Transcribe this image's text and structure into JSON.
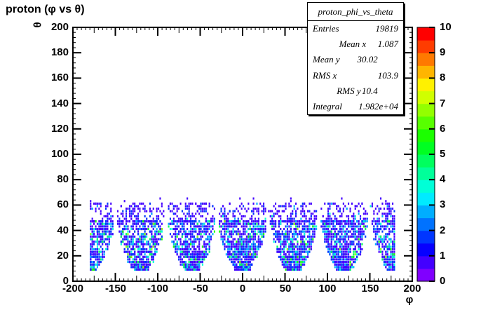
{
  "header": {
    "title": "proton (φ vs θ)"
  },
  "stats": {
    "title": "proton_phi_vs_theta",
    "rows": [
      {
        "label": "Entries",
        "value": "19819"
      },
      {
        "label": "Mean x",
        "value": "1.087"
      },
      {
        "label": "Mean y",
        "value": "30.02"
      },
      {
        "label": "RMS x",
        "value": "103.9"
      },
      {
        "label": "RMS y",
        "value": "10.4"
      },
      {
        "label": "Integral",
        "value": "1.982e+04"
      }
    ]
  },
  "chart_data": {
    "type": "heatmap",
    "title": "proton (φ vs θ)",
    "xlabel": "φ",
    "ylabel": "θ",
    "xlim": [
      -200,
      200
    ],
    "ylim": [
      0,
      200
    ],
    "zlim": [
      0,
      10
    ],
    "x_ticks": [
      -200,
      -150,
      -100,
      -50,
      0,
      50,
      100,
      150,
      200
    ],
    "y_ticks": [
      0,
      20,
      40,
      60,
      80,
      100,
      120,
      140,
      160,
      180,
      200
    ],
    "z_ticks": [
      0,
      1,
      2,
      3,
      4,
      5,
      6,
      7,
      8,
      9,
      10
    ],
    "x_minor_step": 5,
    "x_medium_step": 25,
    "y_minor_step": 4,
    "y_medium_step": 10,
    "grid": false,
    "legend_position": "right-palette",
    "palette": [
      "#8000FF",
      "#4300FF",
      "#0700FF",
      "#0036FF",
      "#0072FF",
      "#00AEFF",
      "#00EBFF",
      "#00FFD7",
      "#00FF9A",
      "#00FF5E",
      "#00FF22",
      "#1BFF00",
      "#57FF00",
      "#93FF00",
      "#D0FF00",
      "#FFF100",
      "#FFB500",
      "#FF7900",
      "#FF3C00",
      "#FF0000"
    ],
    "distribution": {
      "description": "2D histogram of proton φ (x, deg) vs θ (y, deg): six detector sectors ~55° wide in φ centered at -180,-120,-60,0,60,120 (the ±180 sector wraps, giving half-blobs at both plot edges); dense acceptance for θ ≈ 8–48 with rounded narrow bottoms at low θ, sparse tail up to θ ≈ 62; bin contents mostly 1–5 counts (blue→cyan→green), palette max 10",
      "sector_centers": [
        -180,
        -120,
        -60,
        0,
        60,
        120
      ],
      "theta_range": [
        8,
        62
      ],
      "dense_theta_range": [
        8,
        48
      ],
      "sector_half_width_max": 27,
      "bin_size": [
        2,
        2
      ],
      "n_points": 5000,
      "n_outliers": 14,
      "seed": 20819,
      "count_colors": {
        "1": "#4300FF",
        "2": "#0036FF",
        "3": "#00AEFF",
        "4": "#00FFD7",
        "5": "#00FF5E",
        "6": "#1BFF00",
        "7": "#93FF00"
      },
      "count_cdf_core": [
        0.48,
        0.7,
        0.83,
        0.915,
        0.965,
        0.99,
        1.0
      ],
      "count_cdf_tail": [
        0.78,
        0.95,
        0.99,
        1.0
      ]
    },
    "stats": {
      "entries": 19819,
      "mean_x": 1.087,
      "mean_y": 30.02,
      "rms_x": 103.9,
      "rms_y": 10.4,
      "integral": "1.982e+04"
    }
  },
  "colors": {
    "background": "#ffffff",
    "frame": "#000000",
    "text": "#000000"
  }
}
